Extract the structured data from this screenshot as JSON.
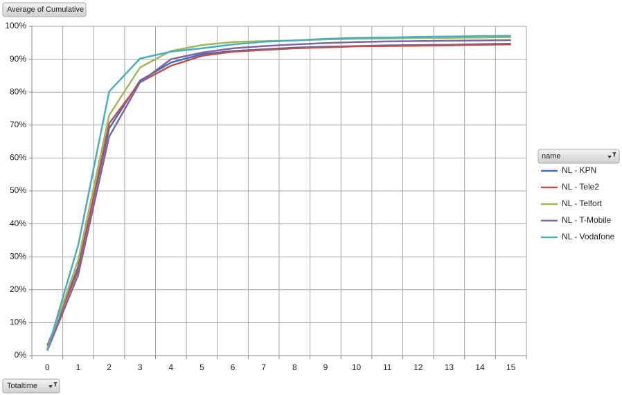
{
  "chart_data": {
    "type": "line",
    "data_field": "Average of Cumulative",
    "axis_field": "Totaltime",
    "legend_title": "name",
    "categories": [
      "0",
      "1",
      "2",
      "3",
      "4",
      "5",
      "6",
      "7",
      "8",
      "9",
      "10",
      "11",
      "12",
      "13",
      "14",
      "15"
    ],
    "series": [
      {
        "name": "NL - KPN",
        "color": "#3f6fb6",
        "values": [
          2,
          27,
          69,
          83.5,
          89,
          91.5,
          92.5,
          93,
          93.5,
          93.8,
          94,
          94.2,
          94.3,
          94.4,
          94.6,
          94.7
        ]
      },
      {
        "name": "NL - Tele2",
        "color": "#c0504d",
        "values": [
          3,
          26,
          70.5,
          83,
          88,
          91,
          92.3,
          92.8,
          93.3,
          93.6,
          93.9,
          94,
          94.1,
          94.2,
          94.4,
          94.5
        ]
      },
      {
        "name": "NL - Telfort",
        "color": "#9bbb59",
        "values": [
          2,
          29,
          73,
          87.5,
          92.5,
          94.3,
          95.2,
          95.5,
          95.7,
          96,
          96.2,
          96.3,
          96.4,
          96.5,
          96.6,
          96.7
        ]
      },
      {
        "name": "NL - T-Mobile",
        "color": "#8064a2",
        "values": [
          1.5,
          24.5,
          66.5,
          83,
          90,
          92,
          93.3,
          94,
          94.5,
          94.9,
          95.2,
          95.4,
          95.5,
          95.6,
          95.7,
          95.8
        ]
      },
      {
        "name": "NL - Vodafone",
        "color": "#4bacc6",
        "values": [
          1.5,
          33.5,
          80.2,
          90.2,
          92.3,
          93.3,
          94.5,
          95.3,
          95.7,
          96.2,
          96.5,
          96.6,
          96.8,
          96.9,
          97,
          97.1
        ]
      }
    ],
    "ylim": [
      0,
      100
    ],
    "yticks": [
      {
        "value": 0,
        "label": "0%"
      },
      {
        "value": 10,
        "label": "10%"
      },
      {
        "value": 20,
        "label": "20%"
      },
      {
        "value": 30,
        "label": "30%"
      },
      {
        "value": 40,
        "label": "40%"
      },
      {
        "value": 50,
        "label": "50%"
      },
      {
        "value": 60,
        "label": "60%"
      },
      {
        "value": 70,
        "label": "70%"
      },
      {
        "value": 80,
        "label": "80%"
      },
      {
        "value": 90,
        "label": "90%"
      },
      {
        "value": 100,
        "label": "100%"
      }
    ],
    "grid": true
  }
}
